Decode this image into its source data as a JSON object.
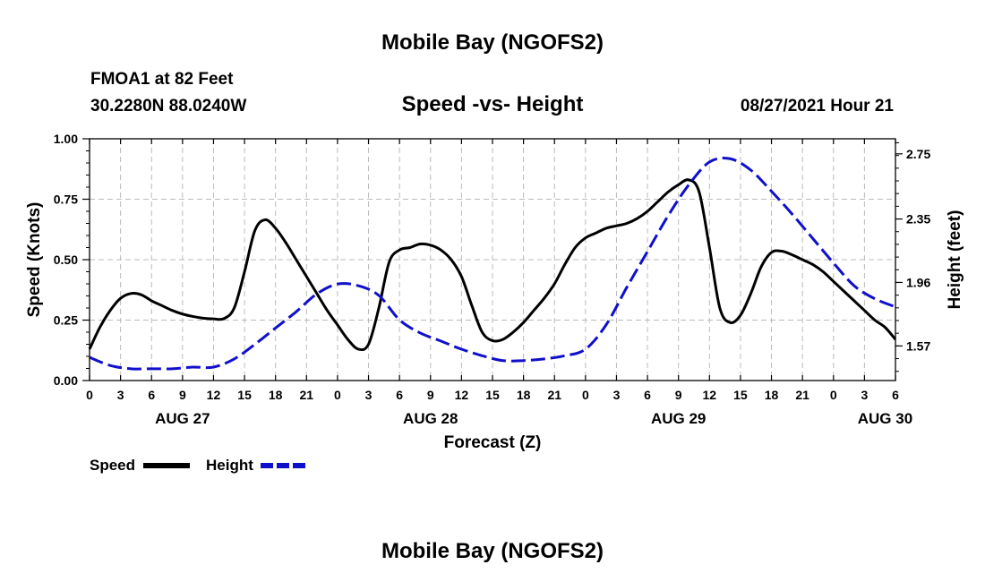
{
  "header": {
    "title": "Mobile Bay (NGOFS2)",
    "station": "FMOA1 at 82 Feet",
    "coords": "30.2280N  88.0240W",
    "subtitle": "Speed -vs- Height",
    "issued": "08/27/2021 Hour 21"
  },
  "footer": {
    "title": "Mobile Bay (NGOFS2)"
  },
  "colors": {
    "speed": "#000000",
    "height": "#1010cc",
    "grid": "#bbbbbb"
  },
  "chart_data": {
    "type": "line",
    "title": "Speed -vs- Height",
    "xlabel": "Forecast (Z)",
    "ylabel": "Speed (Knots)",
    "y2label": "Height (feet)",
    "xlim": [
      0,
      78
    ],
    "ylim": [
      0,
      1
    ],
    "y2lim": [
      1.3575,
      2.8425
    ],
    "grid": true,
    "legend_position": "bottom-left",
    "x_tick_labels": [
      "0",
      "3",
      "6",
      "9",
      "12",
      "15",
      "18",
      "21",
      "0",
      "3",
      "6",
      "9",
      "12",
      "15",
      "18",
      "21",
      "0",
      "3",
      "6",
      "9",
      "12",
      "15",
      "18",
      "21",
      "0",
      "3",
      "6"
    ],
    "date_labels": [
      {
        "x": 9,
        "label": "AUG 27"
      },
      {
        "x": 33,
        "label": "AUG 28"
      },
      {
        "x": 57,
        "label": "AUG 29"
      },
      {
        "x": 77,
        "label": "AUG 30"
      }
    ],
    "y_ticks": [
      "0.00",
      "0.25",
      "0.50",
      "0.75",
      "1.00"
    ],
    "y2_ticks": [
      "1.57",
      "1.96",
      "2.35",
      "2.75"
    ],
    "series": [
      {
        "name": "Speed",
        "axis": "left",
        "style": "solid",
        "x": [
          0,
          1,
          2,
          3,
          4,
          5,
          6,
          7,
          8,
          9,
          10,
          11,
          12,
          13,
          14,
          15,
          16,
          17,
          18,
          19,
          20,
          21,
          22,
          23,
          24,
          25,
          26,
          27,
          28,
          29,
          30,
          31,
          32,
          33,
          34,
          35,
          36,
          37,
          38,
          39,
          40,
          41,
          42,
          43,
          44,
          45,
          46,
          47,
          48,
          49,
          50,
          51,
          52,
          53,
          54,
          55,
          56,
          57,
          58,
          59,
          60,
          61,
          62,
          63,
          64,
          65,
          66,
          67,
          68,
          69,
          70,
          71,
          72,
          73,
          74,
          75,
          76,
          77,
          78
        ],
        "values": [
          0.13,
          0.22,
          0.29,
          0.34,
          0.36,
          0.355,
          0.33,
          0.31,
          0.29,
          0.275,
          0.265,
          0.258,
          0.255,
          0.256,
          0.3,
          0.45,
          0.62,
          0.665,
          0.63,
          0.57,
          0.5,
          0.43,
          0.36,
          0.29,
          0.23,
          0.17,
          0.13,
          0.15,
          0.3,
          0.49,
          0.54,
          0.55,
          0.565,
          0.56,
          0.54,
          0.5,
          0.43,
          0.31,
          0.2,
          0.165,
          0.17,
          0.2,
          0.24,
          0.29,
          0.34,
          0.4,
          0.48,
          0.55,
          0.59,
          0.61,
          0.63,
          0.64,
          0.65,
          0.67,
          0.7,
          0.74,
          0.78,
          0.81,
          0.83,
          0.78,
          0.55,
          0.3,
          0.24,
          0.27,
          0.36,
          0.47,
          0.53,
          0.535,
          0.52,
          0.5,
          0.48,
          0.45,
          0.41,
          0.37,
          0.33,
          0.29,
          0.25,
          0.22,
          0.17
        ]
      },
      {
        "name": "Height",
        "axis": "right",
        "style": "dashed",
        "x": [
          0,
          2,
          4,
          6,
          8,
          10,
          12,
          14,
          16,
          18,
          20,
          22,
          24,
          26,
          28,
          30,
          32,
          34,
          36,
          38,
          40,
          42,
          44,
          46,
          48,
          50,
          52,
          54,
          56,
          58,
          60,
          62,
          64,
          66,
          68,
          70,
          72,
          74,
          76,
          78
        ],
        "values": [
          1.5,
          1.45,
          1.43,
          1.43,
          1.43,
          1.44,
          1.44,
          1.49,
          1.58,
          1.68,
          1.78,
          1.89,
          1.95,
          1.94,
          1.88,
          1.73,
          1.65,
          1.6,
          1.55,
          1.51,
          1.48,
          1.48,
          1.49,
          1.51,
          1.55,
          1.7,
          1.93,
          2.15,
          2.37,
          2.56,
          2.7,
          2.72,
          2.65,
          2.52,
          2.38,
          2.23,
          2.08,
          1.94,
          1.86,
          1.81
        ]
      }
    ]
  }
}
